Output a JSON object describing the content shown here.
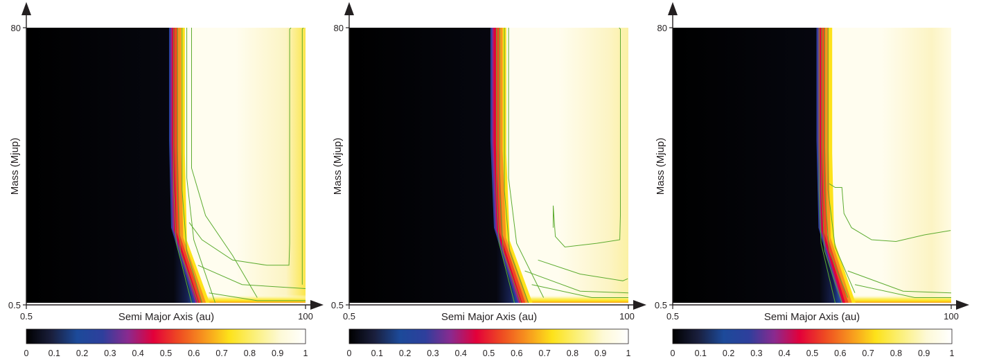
{
  "colorbar": {
    "stops": [
      "#000000",
      "#1a1f3d",
      "#1c4a9a",
      "#2e3f9c",
      "#8a2a8f",
      "#e3003a",
      "#ee4a22",
      "#f7951e",
      "#fde21a",
      "#fbf07a",
      "#fdf9d6",
      "#ffffff"
    ],
    "low_color": "#000000",
    "high_color": "#fffdf0"
  },
  "contour_color": "#5cab2f",
  "chart_data": [
    {
      "type": "heatmap",
      "xlabel": "Semi Major Axis (au)",
      "ylabel": "Mass (Mjup)",
      "xlim": [
        0.5,
        100
      ],
      "ylim": [
        0.5,
        80
      ],
      "x_ticks": [
        "0.5",
        "100"
      ],
      "y_ticks": [
        "0.5",
        "80"
      ],
      "colorbar_ticks": [
        "0",
        "0.1",
        "0.2",
        "0.3",
        "0.4",
        "0.5",
        "0.6",
        "0.7",
        "0.8",
        "0.9",
        "1"
      ],
      "colorbar_range": [
        0,
        1
      ],
      "detection_boundary": [
        [
          12,
          0.5
        ],
        [
          7.8,
          2
        ],
        [
          7.5,
          10
        ],
        [
          7.5,
          80
        ]
      ],
      "right_edge_value": 0.82,
      "contours": [
        {
          "points": [
            [
              11.5,
              0.5
            ],
            [
              8.6,
              1.5
            ],
            [
              8.2,
              4
            ],
            [
              8.2,
              80
            ]
          ]
        },
        {
          "points": [
            [
              13,
              0.5
            ],
            [
              9.3,
              1.3
            ],
            [
              8.8,
              4
            ],
            [
              8.8,
              80
            ]
          ]
        },
        {
          "points": [
            [
              14,
              0.5
            ],
            [
              10.5,
              1.3
            ],
            [
              9.6,
              4
            ],
            [
              9.6,
              80
            ]
          ]
        },
        {
          "points": [
            [
              18,
              0.5
            ],
            [
              12,
              1.6
            ],
            [
              10.5,
              5
            ],
            [
              10.5,
              80
            ]
          ]
        },
        {
          "points": [
            [
              40,
              0.55
            ],
            [
              25,
              1.2
            ],
            [
              15,
              2.5
            ],
            [
              11.5,
              6
            ],
            [
              11.5,
              80
            ]
          ]
        },
        {
          "points": [
            [
              13,
              1.0
            ],
            [
              30,
              0.7
            ],
            [
              100,
              0.65
            ]
          ]
        },
        {
          "points": [
            [
              16,
              0.6
            ],
            [
              40,
              0.52
            ],
            [
              100,
              0.52
            ]
          ]
        },
        {
          "points": [
            [
              11,
              2.2
            ],
            [
              14,
              1.6
            ],
            [
              25,
              1.1
            ],
            [
              48,
              1.0
            ],
            [
              73,
              1.0
            ],
            [
              74,
              1.5
            ],
            [
              74,
              78
            ],
            [
              76,
              80
            ]
          ]
        },
        {
          "points": [
            [
              94,
              0.7
            ],
            [
              94,
              78
            ],
            [
              96,
              80
            ]
          ]
        }
      ]
    },
    {
      "type": "heatmap",
      "xlabel": "Semi Major Axis (au)",
      "ylabel": "Mass (Mjup)",
      "xlim": [
        0.5,
        100
      ],
      "ylim": [
        0.5,
        80
      ],
      "x_ticks": [
        "0.5",
        "100"
      ],
      "y_ticks": [
        "0.5",
        "80"
      ],
      "colorbar_ticks": [
        "0",
        "0.1",
        "0.2",
        "0.3",
        "0.4",
        "0.5",
        "0.6",
        "0.7",
        "0.8",
        "0.9",
        "1"
      ],
      "colorbar_range": [
        0,
        1
      ],
      "detection_boundary": [
        [
          12,
          0.5
        ],
        [
          7.8,
          2
        ],
        [
          7.3,
          10
        ],
        [
          7.3,
          80
        ]
      ],
      "right_edge_value": 0.88,
      "contours": [
        {
          "points": [
            [
              11.5,
              0.5
            ],
            [
              8.6,
              1.5
            ],
            [
              8.2,
              4
            ],
            [
              8.2,
              80
            ]
          ]
        },
        {
          "points": [
            [
              13,
              0.5
            ],
            [
              9.3,
              1.3
            ],
            [
              8.7,
              4
            ],
            [
              8.7,
              80
            ]
          ]
        },
        {
          "points": [
            [
              15,
              0.5
            ],
            [
              10.5,
              1.3
            ],
            [
              9.5,
              4
            ],
            [
              9.5,
              80
            ]
          ]
        },
        {
          "points": [
            [
              20,
              0.55
            ],
            [
              12,
              1.5
            ],
            [
              10.3,
              5
            ],
            [
              10.3,
              80
            ]
          ]
        },
        {
          "points": [
            [
              14,
              0.9
            ],
            [
              40,
              0.62
            ],
            [
              100,
              0.6
            ]
          ]
        },
        {
          "points": [
            [
              16,
              0.7
            ],
            [
              50,
              0.55
            ],
            [
              100,
              0.55
            ]
          ]
        },
        {
          "points": [
            [
              24,
              2.0
            ],
            [
              24,
              3
            ],
            [
              25,
              1.7
            ],
            [
              30,
              1.4
            ],
            [
              55,
              1.5
            ],
            [
              85,
              1.6
            ],
            [
              86,
              2.5
            ],
            [
              86,
              78
            ],
            [
              84,
              80
            ]
          ]
        },
        {
          "points": [
            [
              18,
              1.1
            ],
            [
              40,
              0.85
            ],
            [
              90,
              0.75
            ],
            [
              99,
              0.78
            ]
          ]
        }
      ]
    },
    {
      "type": "heatmap",
      "xlabel": "Semi Major Axis (au)",
      "ylabel": "Mass (Mjup)",
      "xlim": [
        0.5,
        100
      ],
      "ylim": [
        0.5,
        80
      ],
      "x_ticks": [
        "0.5",
        "100"
      ],
      "y_ticks": [
        "0.5",
        "80"
      ],
      "colorbar_ticks": [
        "0",
        "0.1",
        "0.2",
        "0.3",
        "0.4",
        "0.5",
        "0.6",
        "0.7",
        "0.8",
        "0.9",
        "1"
      ],
      "colorbar_range": [
        0,
        1
      ],
      "detection_boundary": [
        [
          12,
          0.5
        ],
        [
          8.0,
          2
        ],
        [
          7.7,
          10
        ],
        [
          7.7,
          80
        ]
      ],
      "right_edge_value": 0.98,
      "contours": [
        {
          "points": [
            [
              11,
              0.5
            ],
            [
              8.4,
              1.5
            ],
            [
              8.1,
              4
            ],
            [
              8.1,
              80
            ]
          ]
        },
        {
          "points": [
            [
              12.5,
              0.5
            ],
            [
              9.0,
              1.3
            ],
            [
              8.5,
              4
            ],
            [
              8.5,
              80
            ]
          ]
        },
        {
          "points": [
            [
              14,
              0.55
            ],
            [
              9.8,
              1.3
            ],
            [
              9.0,
              4
            ],
            [
              9.0,
              80
            ]
          ]
        },
        {
          "points": [
            [
              16,
              0.6
            ],
            [
              11,
              1.4
            ],
            [
              9.6,
              4
            ],
            [
              9.6,
              80
            ]
          ]
        },
        {
          "points": [
            [
              14,
              0.9
            ],
            [
              40,
              0.62
            ],
            [
              100,
              0.6
            ]
          ]
        },
        {
          "points": [
            [
              16,
              0.7
            ],
            [
              50,
              0.55
            ],
            [
              100,
              0.55
            ]
          ]
        },
        {
          "points": [
            [
              9.8,
              4.5
            ],
            [
              11,
              4.2
            ],
            [
              12.5,
              4.2
            ],
            [
              13,
              2.6
            ],
            [
              15,
              2.0
            ],
            [
              22,
              1.6
            ],
            [
              35,
              1.55
            ],
            [
              60,
              1.75
            ],
            [
              99,
              1.9
            ]
          ]
        }
      ]
    }
  ]
}
